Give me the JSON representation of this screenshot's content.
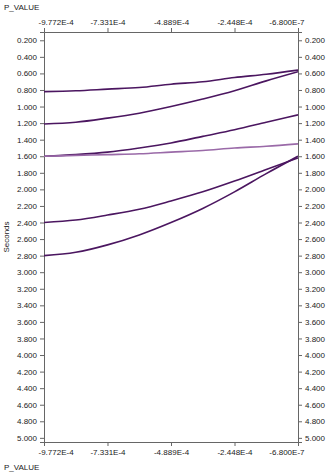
{
  "chart_data": {
    "type": "line",
    "x_label": "P_VALUE",
    "y_label": "Seconds",
    "x": [
      -0.0009772,
      -0.0008551,
      -0.0007331,
      -0.000611,
      -0.0004889,
      -0.0003669,
      -0.0002448,
      -0.0001228,
      -6.8e-07
    ],
    "series": [
      {
        "color": "#4b1660",
        "values": [
          0.82,
          0.81,
          0.79,
          0.77,
          0.73,
          0.7,
          0.65,
          0.61,
          0.56
        ]
      },
      {
        "color": "#4b1660",
        "values": [
          1.21,
          1.19,
          1.14,
          1.08,
          1.0,
          0.91,
          0.81,
          0.69,
          0.58
        ]
      },
      {
        "color": "#4b1660",
        "values": [
          1.6,
          1.58,
          1.55,
          1.5,
          1.44,
          1.36,
          1.28,
          1.19,
          1.1
        ]
      },
      {
        "color": "#9a6aa8",
        "values": [
          1.6,
          1.59,
          1.58,
          1.57,
          1.55,
          1.53,
          1.5,
          1.48,
          1.45
        ]
      },
      {
        "color": "#4b1660",
        "values": [
          2.4,
          2.37,
          2.31,
          2.24,
          2.14,
          2.03,
          1.9,
          1.76,
          1.62
        ]
      },
      {
        "color": "#4b1660",
        "values": [
          2.8,
          2.76,
          2.67,
          2.55,
          2.4,
          2.23,
          2.03,
          1.81,
          1.6
        ]
      }
    ],
    "xlim": [
      -0.0009772,
      -6.8e-07
    ],
    "xticks": [
      {
        "value": -0.0009772,
        "label": "-9.772E-4"
      },
      {
        "value": -0.0007331,
        "label": "-7.331E-4"
      },
      {
        "value": -0.0004889,
        "label": "-4.889E-4"
      },
      {
        "value": -0.0002448,
        "label": "-2.448E-4"
      },
      {
        "value": -6.8e-07,
        "label": "-6.800E-7"
      }
    ],
    "ylim": [
      0.1,
      5.05
    ],
    "yticks": [
      {
        "value": 0.2,
        "label": "0.200"
      },
      {
        "value": 0.4,
        "label": "0.400"
      },
      {
        "value": 0.6,
        "label": "0.600"
      },
      {
        "value": 0.8,
        "label": "0.800"
      },
      {
        "value": 1.0,
        "label": "1.000"
      },
      {
        "value": 1.2,
        "label": "1.200"
      },
      {
        "value": 1.4,
        "label": "1.400"
      },
      {
        "value": 1.6,
        "label": "1.600"
      },
      {
        "value": 1.8,
        "label": "1.800"
      },
      {
        "value": 2.0,
        "label": "2.000"
      },
      {
        "value": 2.2,
        "label": "2.200"
      },
      {
        "value": 2.4,
        "label": "2.400"
      },
      {
        "value": 2.6,
        "label": "2.600"
      },
      {
        "value": 2.8,
        "label": "2.800"
      },
      {
        "value": 3.0,
        "label": "3.000"
      },
      {
        "value": 3.2,
        "label": "3.200"
      },
      {
        "value": 3.4,
        "label": "3.400"
      },
      {
        "value": 3.6,
        "label": "3.600"
      },
      {
        "value": 3.8,
        "label": "3.800"
      },
      {
        "value": 4.0,
        "label": "4.000"
      },
      {
        "value": 4.2,
        "label": "4.200"
      },
      {
        "value": 4.4,
        "label": "4.400"
      },
      {
        "value": 4.6,
        "label": "4.600"
      },
      {
        "value": 4.8,
        "label": "4.800"
      },
      {
        "value": 5.0,
        "label": "5.000"
      }
    ],
    "grid": false
  }
}
